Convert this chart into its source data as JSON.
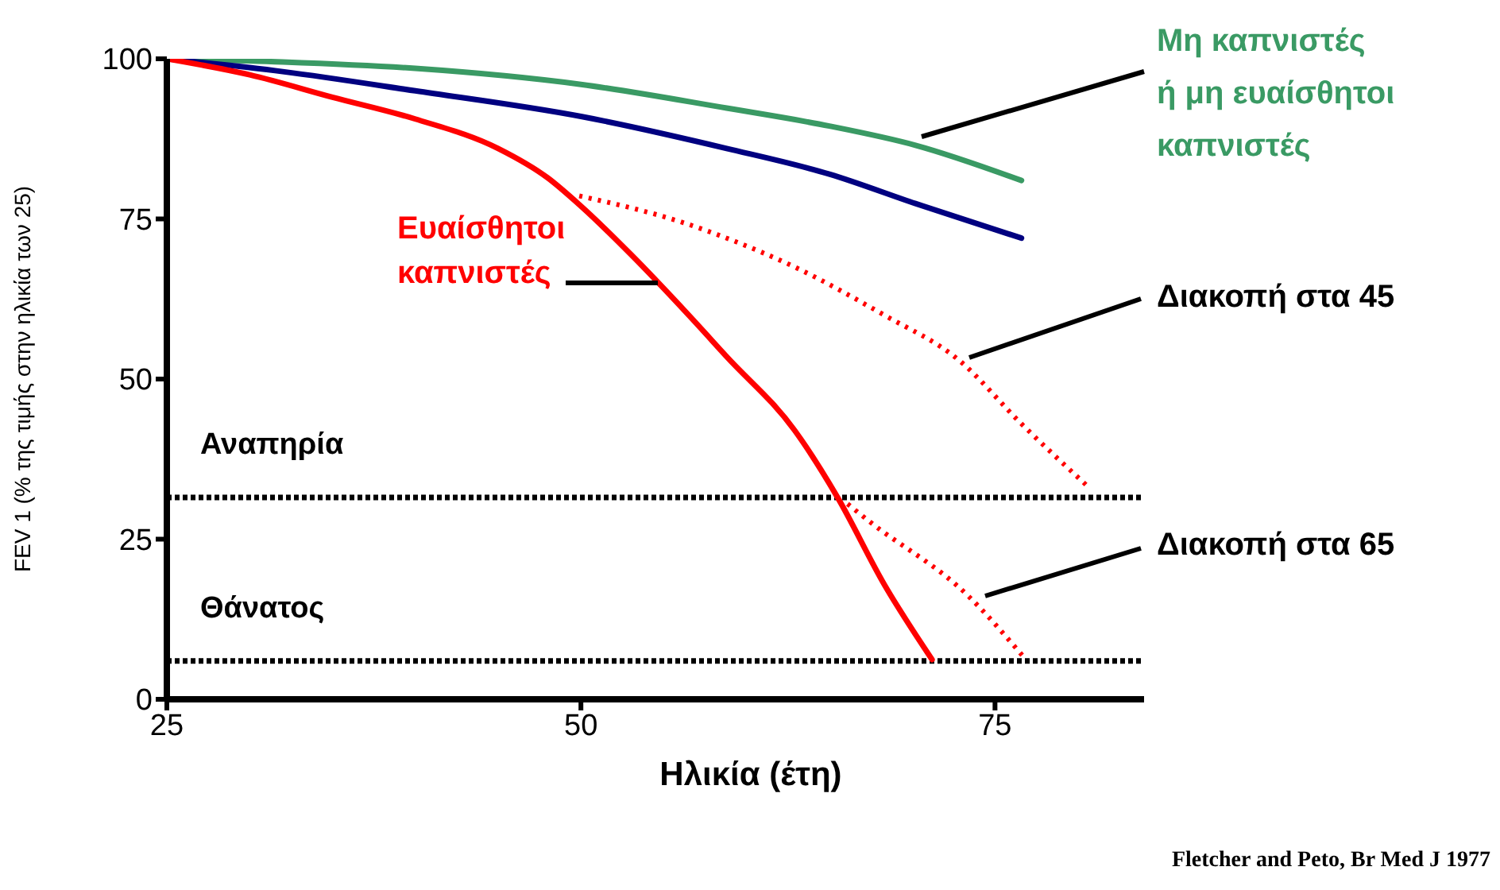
{
  "chart_data": {
    "type": "line",
    "xlabel": "Ηλικία (έτη)",
    "ylabel": "FEV 1 (% της τιμής στην ηλικία των 25)",
    "xlim": [
      25,
      84
    ],
    "xticks": [
      25,
      50,
      75
    ],
    "ylim": [
      0,
      100
    ],
    "yticks": [
      0,
      25,
      50,
      75,
      100
    ],
    "grid": false,
    "marker": "none",
    "series": [
      {
        "name": "Μη καπνιστές ή μη ευαίσθητοι καπνιστές",
        "color": "#3a9a64",
        "line_style": "solid",
        "x": [
          25,
          32,
          40,
          50,
          58.8,
          65,
          70.2,
          76.6
        ],
        "values": [
          100,
          99.5,
          98.5,
          96,
          92.3,
          89.5,
          86.5,
          81
        ]
      },
      {
        "color": "#000080",
        "line_style": "solid",
        "x": [
          25,
          32,
          40,
          50,
          58.8,
          65,
          70.2,
          76.6
        ],
        "values": [
          100,
          98,
          95,
          91,
          86,
          82,
          77.4,
          72
        ]
      },
      {
        "name": "Ευαίσθητοι καπνιστές",
        "color": "#ff0000",
        "line_style": "solid",
        "x": [
          25,
          30,
          35,
          40,
          45,
          48,
          50,
          53,
          56.5,
          58.8,
          62.9,
          65.5,
          68.3,
          71.2
        ],
        "values": [
          100,
          97.5,
          94,
          90.6,
          86,
          81.4,
          77,
          69.5,
          60,
          53.5,
          42,
          31.5,
          18,
          6.2
        ]
      },
      {
        "name": "Διακοπή στα 45",
        "color": "#ff0000",
        "line_style": "dotted",
        "x": [
          49.9,
          56.2,
          58.8,
          62.9,
          68.3,
          72.8,
          76.6,
          80.7
        ],
        "values": [
          78.6,
          74.4,
          72,
          67.5,
          60,
          53,
          43,
          33
        ]
      },
      {
        "name": "Διακοπή στα 65",
        "color": "#ff0000",
        "line_style": "dotted",
        "x": [
          66.1,
          67.4,
          73.4,
          76.7
        ],
        "values": [
          30.5,
          27.8,
          16.1,
          6.7
        ]
      }
    ],
    "ref_lines": [
      {
        "axis": "y",
        "value": 31.5,
        "label": "Αναπηρία",
        "color": "#000000",
        "line_style": "dotted"
      },
      {
        "axis": "y",
        "value": 6,
        "label": "Θάνατος",
        "color": "#000000",
        "line_style": "dotted"
      }
    ],
    "annotations": [
      "Fletcher and Peto, Br Med J 1977"
    ]
  }
}
